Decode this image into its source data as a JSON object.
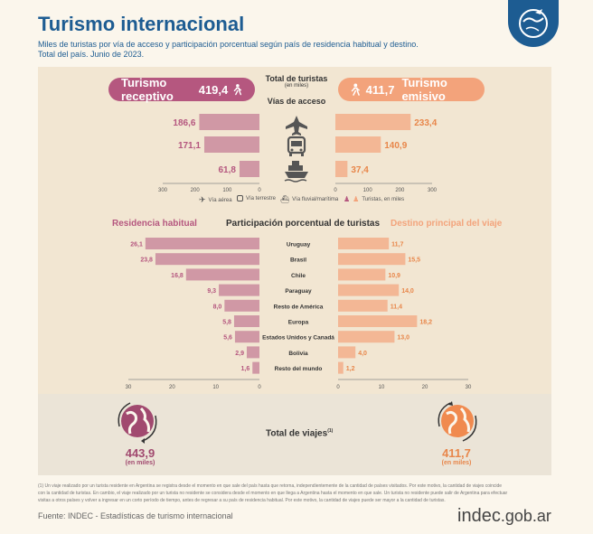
{
  "header": {
    "title": "Turismo internacional",
    "subtitle_line1": "Miles de turistas por vía de acceso y participación porcentual según país de residencia habitual y destino.",
    "subtitle_line2": "Total del país. Junio de 2023."
  },
  "totals": {
    "label": "Total de turistas",
    "unit": "(en miles)",
    "receptivo_label": "Turismo receptivo",
    "receptivo_value": "419,4",
    "emisivo_label": "Turismo emisivo",
    "emisivo_value": "411,7"
  },
  "access": {
    "title": "Vías de acceso",
    "legend": {
      "aerea": "Vía aérea",
      "terrestre": "Vía terrestre",
      "fluvial": "Vía fluvial/marítima",
      "turistas": "Turistas, en miles"
    }
  },
  "participation": {
    "left_title": "Residencia habitual",
    "center_title": "Participación porcentual de turistas",
    "right_title": "Destino principal del viaje"
  },
  "trips": {
    "label": "Total de viajes",
    "note_mark": "(1)",
    "left_value": "443,9",
    "left_unit": "(en miles)",
    "right_value": "411,7",
    "right_unit": "(en miles)"
  },
  "footnote": "(1) Un viaje realizado por un turista residente en Argentina se registra desde el momento en que sale del país hasta que retorna, independientemente de la cantidad de países visitados. Por este motivo, la cantidad de viajes coincide con la cantidad de turistas. En cambio, el viaje realizado por un turista no residente se considera desde el momento en que llega a Argentina hasta el momento en que sale. Un turista no residente puede salir de Argentina para efectuar visitas a otros países y volver a ingresar en un corto período de tiempo, antes de regresar a su país de residencia habitual. Por este motivo, la cantidad de viajes puede ser mayor a la cantidad de turistas.",
  "source": "Fuente: INDEC - Estadísticas de turismo internacional",
  "brand": {
    "name": "indec",
    "suffix": ".gob.ar"
  },
  "colors": {
    "receptivo": "#b5577f",
    "emisivo": "#f3a37b",
    "blue": "#1d5c92"
  },
  "chart_data": [
    {
      "type": "bar",
      "title": "Vías de acceso",
      "categories": [
        "Vía aérea",
        "Vía terrestre",
        "Vía fluvial/marítima"
      ],
      "series": [
        {
          "name": "Turismo receptivo",
          "values": [
            186.6,
            171.1,
            61.8
          ],
          "labels": [
            "186,6",
            "171,1",
            "61,8"
          ]
        },
        {
          "name": "Turismo emisivo",
          "values": [
            233.4,
            140.9,
            37.4
          ],
          "labels": [
            "233,4",
            "140,9",
            "37,4"
          ]
        }
      ],
      "xlim": [
        0,
        300
      ],
      "ticks": [
        "300",
        "200",
        "100",
        "0",
        "0",
        "100",
        "200",
        "300"
      ],
      "unit": "Turistas, en miles"
    },
    {
      "type": "bar",
      "title": "Participación porcentual de turistas",
      "categories": [
        "Uruguay",
        "Brasil",
        "Chile",
        "Paraguay",
        "Resto de América",
        "Europa",
        "Estados Unidos y Canadá",
        "Bolivia",
        "Resto del mundo"
      ],
      "series": [
        {
          "name": "Residencia habitual",
          "values": [
            26.1,
            23.8,
            16.8,
            9.3,
            8.0,
            5.8,
            5.6,
            2.9,
            1.6
          ],
          "labels": [
            "26,1",
            "23,8",
            "16,8",
            "9,3",
            "8,0",
            "5,8",
            "5,6",
            "2,9",
            "1,6"
          ]
        },
        {
          "name": "Destino principal del viaje",
          "values": [
            11.7,
            15.5,
            10.9,
            14.0,
            11.4,
            18.2,
            13.0,
            4.0,
            1.2
          ],
          "labels": [
            "11,7",
            "15,5",
            "10,9",
            "14,0",
            "11,4",
            "18,2",
            "13,0",
            "4,0",
            "1,2"
          ]
        }
      ],
      "xlim": [
        0,
        30
      ],
      "ticks": [
        "30",
        "20",
        "10",
        "0",
        "0",
        "10",
        "20",
        "30"
      ]
    }
  ]
}
